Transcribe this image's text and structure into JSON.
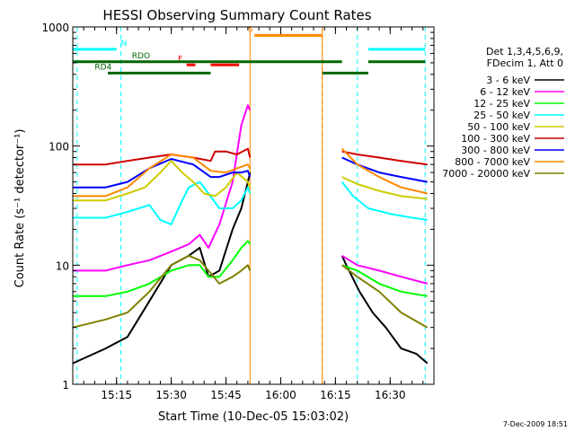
{
  "chart_data": {
    "type": "line",
    "title": "HESSI Observing Summary Count Rates",
    "xlabel": "Start Time (10-Dec-05 15:03:02)",
    "ylabel": "Count Rate (s⁻¹ detector⁻¹)",
    "yscale": "log",
    "ylim": [
      1,
      1000
    ],
    "xlim": [
      15.05,
      16.7
    ],
    "x_unit": "UT hours (15.5 = 15:30)",
    "x_ticks": [
      {
        "x": 15.25,
        "label": "15:15"
      },
      {
        "x": 15.5,
        "label": "15:30"
      },
      {
        "x": 15.75,
        "label": "15:45"
      },
      {
        "x": 16.0,
        "label": "16:00"
      },
      {
        "x": 16.25,
        "label": "16:15"
      },
      {
        "x": 16.5,
        "label": "16:30"
      }
    ],
    "y_ticks": [
      {
        "y": 1,
        "label": "1"
      },
      {
        "y": 10,
        "label": "10"
      },
      {
        "y": 100,
        "label": "100"
      },
      {
        "y": 1000,
        "label": "1000"
      }
    ],
    "legend_header": [
      "Det 1,3,4,5,6,9,",
      "FDecim 1, Att 0"
    ],
    "series": [
      {
        "name": "3 - 6 keV",
        "color": "#000000",
        "x": [
          15.05,
          15.2,
          15.3,
          15.4,
          15.5,
          15.58,
          15.63,
          15.67,
          15.72,
          15.78,
          15.82,
          15.85,
          15.86,
          16.28,
          16.3,
          16.36,
          16.42,
          16.48,
          16.55,
          16.62,
          16.67
        ],
        "y": [
          1.5,
          2.0,
          2.5,
          5,
          10,
          12,
          14,
          8,
          9,
          20,
          30,
          50,
          60,
          12,
          10,
          6,
          4,
          3,
          2,
          1.8,
          1.5
        ]
      },
      {
        "name": "6 - 12 keV",
        "color": "#ff00ff",
        "x": [
          15.05,
          15.2,
          15.3,
          15.4,
          15.5,
          15.58,
          15.63,
          15.67,
          15.72,
          15.78,
          15.82,
          15.85,
          15.86,
          16.28,
          16.35,
          16.45,
          16.55,
          16.67
        ],
        "y": [
          9,
          9,
          10,
          11,
          13,
          15,
          18,
          14,
          22,
          50,
          150,
          220,
          200,
          12,
          10,
          9,
          8,
          7
        ]
      },
      {
        "name": "12 - 25 keV",
        "color": "#00ff00",
        "x": [
          15.05,
          15.2,
          15.3,
          15.4,
          15.5,
          15.58,
          15.63,
          15.67,
          15.72,
          15.78,
          15.82,
          15.85,
          15.86,
          16.28,
          16.35,
          16.45,
          16.55,
          16.67
        ],
        "y": [
          5.5,
          5.5,
          6,
          7,
          9,
          10,
          10,
          8,
          8,
          11,
          14,
          16,
          15,
          10,
          9,
          7,
          6,
          5.5
        ]
      },
      {
        "name": "25 - 50 keV",
        "color": "#00ffff",
        "x": [
          15.05,
          15.2,
          15.3,
          15.4,
          15.45,
          15.5,
          15.55,
          15.58,
          15.63,
          15.67,
          15.72,
          15.78,
          15.82,
          15.85,
          15.86,
          16.28,
          16.33,
          16.4,
          16.5,
          16.6,
          16.67
        ],
        "y": [
          25,
          25,
          28,
          32,
          24,
          22,
          35,
          45,
          50,
          40,
          30,
          30,
          35,
          45,
          40,
          50,
          38,
          30,
          27,
          25,
          24
        ]
      },
      {
        "name": "50 - 100 keV",
        "color": "#cccc00",
        "x": [
          15.05,
          15.2,
          15.3,
          15.38,
          15.45,
          15.5,
          15.55,
          15.6,
          15.65,
          15.7,
          15.75,
          15.8,
          15.85,
          15.86,
          16.28,
          16.35,
          16.45,
          16.55,
          16.67
        ],
        "y": [
          35,
          35,
          40,
          45,
          60,
          75,
          60,
          50,
          40,
          38,
          45,
          60,
          50,
          45,
          55,
          48,
          42,
          38,
          36
        ]
      },
      {
        "name": "100 - 300 keV",
        "color": "#cc0000",
        "x": [
          15.05,
          15.2,
          15.3,
          15.4,
          15.5,
          15.6,
          15.68,
          15.7,
          15.75,
          15.8,
          15.85,
          15.86,
          16.28,
          16.35,
          16.45,
          16.55,
          16.67
        ],
        "y": [
          70,
          70,
          75,
          80,
          85,
          80,
          75,
          90,
          90,
          85,
          95,
          80,
          90,
          85,
          80,
          75,
          70
        ]
      },
      {
        "name": "300 - 800 keV",
        "color": "#0000ff",
        "x": [
          15.05,
          15.2,
          15.3,
          15.4,
          15.5,
          15.6,
          15.68,
          15.72,
          15.78,
          15.82,
          15.85,
          15.86,
          16.28,
          16.35,
          16.45,
          16.55,
          16.67
        ],
        "y": [
          45,
          45,
          50,
          65,
          78,
          70,
          55,
          55,
          60,
          60,
          62,
          55,
          80,
          70,
          60,
          55,
          50
        ]
      },
      {
        "name": "800 - 7000 keV",
        "color": "#ff8800",
        "x": [
          15.05,
          15.2,
          15.3,
          15.4,
          15.5,
          15.6,
          15.68,
          15.75,
          15.8,
          15.85,
          15.86,
          16.28,
          16.35,
          16.45,
          16.55,
          16.67
        ],
        "y": [
          38,
          38,
          45,
          65,
          85,
          80,
          62,
          60,
          65,
          70,
          65,
          95,
          70,
          55,
          45,
          40
        ]
      },
      {
        "name": "7000 - 20000 keV",
        "color": "#808000",
        "x": [
          15.05,
          15.2,
          15.3,
          15.4,
          15.5,
          15.58,
          15.63,
          15.67,
          15.72,
          15.78,
          15.82,
          15.85,
          15.86,
          16.28,
          16.35,
          16.45,
          16.55,
          16.67
        ],
        "y": [
          3,
          3.5,
          4,
          6,
          10,
          12,
          11,
          9,
          7,
          8,
          9,
          10,
          9,
          10,
          8,
          6,
          4,
          3
        ]
      }
    ],
    "vlines_solid": [
      {
        "x": 15.86,
        "color": "#ff8800"
      },
      {
        "x": 16.19,
        "color": "#ff8800"
      }
    ],
    "vlines_dashed": [
      {
        "x": 15.07,
        "color": "#00ffff"
      },
      {
        "x": 15.27,
        "color": "#00ffff"
      },
      {
        "x": 16.35,
        "color": "#00ffff"
      },
      {
        "x": 16.66,
        "color": "#00ffff"
      },
      {
        "x": 16.19,
        "color": "#ff8800"
      }
    ],
    "flag_bars": [
      {
        "label": "N",
        "color": "#00ffff",
        "y": 650,
        "segments": [
          [
            15.05,
            15.25
          ],
          [
            16.4,
            16.66
          ]
        ],
        "label_x": 15.27
      },
      {
        "label": "F",
        "color": "#ff0000",
        "y": 480,
        "segments": [
          [
            15.57,
            15.61
          ],
          [
            15.68,
            15.81
          ]
        ],
        "label_x": 15.53
      },
      {
        "label": "S",
        "color": "#ff8800",
        "y": 850,
        "segments": [
          [
            15.88,
            16.19
          ]
        ],
        "label_x": 15.85
      },
      {
        "label": "RDO",
        "color": "#006600",
        "y": 510,
        "segments": [
          [
            15.05,
            16.28
          ],
          [
            16.4,
            16.66
          ]
        ],
        "label_x": 15.32
      },
      {
        "label": "RD4",
        "color": "#006600",
        "y": 410,
        "segments": [
          [
            15.21,
            15.68
          ],
          [
            16.19,
            16.4
          ]
        ],
        "label_x": 15.15
      }
    ]
  },
  "footer_timestamp": "7-Dec-2009 18:51"
}
